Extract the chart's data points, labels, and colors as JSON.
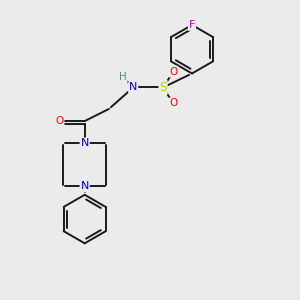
{
  "background_color": "#ebebeb",
  "figsize": [
    3.0,
    3.0
  ],
  "dpi": 100,
  "bond_color": "#1a1a1a",
  "bond_lw": 1.4,
  "ring_r": 0.13,
  "colors": {
    "F": "#cc00cc",
    "O": "#ff0000",
    "S": "#cccc00",
    "N": "#0000dd",
    "H": "#558888",
    "C": "#1a1a1a"
  },
  "font_size": 7.5
}
